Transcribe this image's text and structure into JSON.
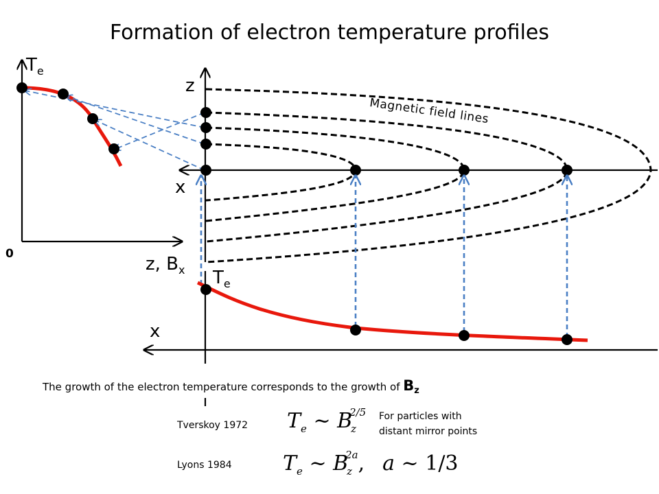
{
  "title": "Formation of electron temperature profiles",
  "field_lines_label": "Magnetic field lines",
  "left_plot": {
    "y_label_main": "T",
    "y_label_sub": "e",
    "x_label_main": "z, B",
    "x_label_sub": "x",
    "origin_label": "0"
  },
  "center_plot": {
    "z_label": "z",
    "x_label": "x"
  },
  "bottom_plot": {
    "y_label_main": "T",
    "y_label_sub": "e",
    "x_label": "x"
  },
  "statement_text": "The growth of the electron temperature corresponds to the growth of ",
  "statement_bold": "B",
  "statement_bold_sub": "z",
  "references": [
    {
      "author": "Tverskoy 1972"
    },
    {
      "author": "Lyons 1984"
    }
  ],
  "formula1": {
    "lhs": "T",
    "lhs_sub": "e",
    "rel": " ~ ",
    "rhs": "B",
    "rhs_sub": "z",
    "rhs_sup": "2/5"
  },
  "formula2": {
    "lhs": "T",
    "lhs_sub": "e",
    "rel": " ~ ",
    "rhs": "B",
    "rhs_sub": "z",
    "rhs_sup": "2a",
    "sep": ",",
    "p": "a",
    "prel": " ~ ",
    "pval": "1/3"
  },
  "formula1_note": [
    "For particles with",
    "distant mirror points"
  ],
  "colors": {
    "curve": "#e8180c",
    "arrow": "#4a7fc4",
    "line": "#000000"
  }
}
